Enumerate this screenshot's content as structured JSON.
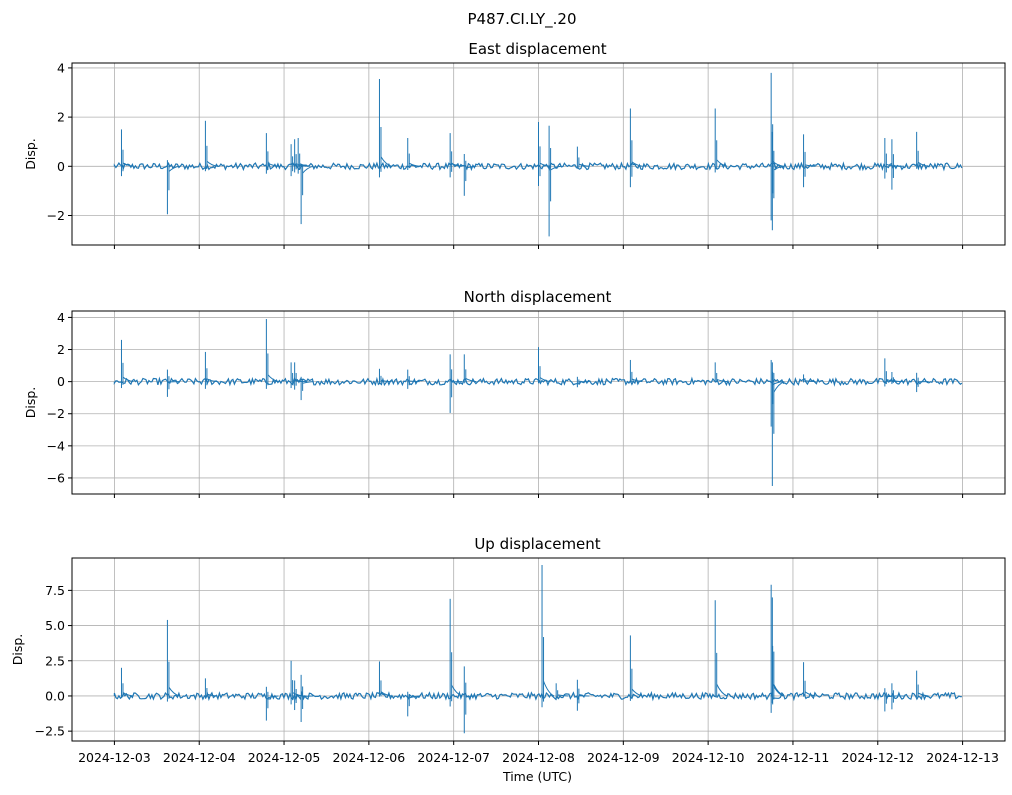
{
  "figure": {
    "title": "P487.CI.LY_.20"
  },
  "colors": {
    "line": "#1f77b4",
    "grid": "#b0b0b0",
    "axes": "#000000"
  },
  "chart_data": [
    {
      "type": "line",
      "title": "East displacement",
      "ylabel": "Disp.",
      "xlabel": "",
      "grid": true,
      "xlim": [
        "2024-12-02T12:00",
        "2024-12-13T12:00"
      ],
      "ylim": [
        -3.2,
        4.2
      ],
      "yticks": [
        4,
        2,
        0,
        -2
      ],
      "ytick_labels": [
        "4",
        "2",
        "0",
        "−2"
      ],
      "xticks": [
        "2024-12-03",
        "2024-12-04",
        "2024-12-05",
        "2024-12-06",
        "2024-12-07",
        "2024-12-08",
        "2024-12-09",
        "2024-12-10",
        "2024-12-11",
        "2024-12-12",
        "2024-12-13"
      ],
      "show_xtick_labels": false,
      "series": [
        {
          "x_range": [
            "2024-12-03T00:00",
            "2024-12-12T23:59"
          ],
          "baseline": 0,
          "spikes": [
            {
              "t": "2024-12-03T02:00",
              "min": -0.4,
              "max": 1.5
            },
            {
              "t": "2024-12-03T15:00",
              "min": -1.95,
              "max": 0.25
            },
            {
              "t": "2024-12-04T01:45",
              "min": -0.2,
              "max": 1.85
            },
            {
              "t": "2024-12-04T19:00",
              "min": -0.3,
              "max": 1.35
            },
            {
              "t": "2024-12-05T02:00",
              "min": -0.4,
              "max": 0.9
            },
            {
              "t": "2024-12-05T03:00",
              "min": -0.25,
              "max": 1.1
            },
            {
              "t": "2024-12-05T04:00",
              "min": -0.3,
              "max": 1.15
            },
            {
              "t": "2024-12-05T04:50",
              "min": -2.35,
              "max": 0.1
            },
            {
              "t": "2024-12-06T03:00",
              "min": -0.45,
              "max": 3.55
            },
            {
              "t": "2024-12-06T11:00",
              "min": -0.15,
              "max": 1.15
            },
            {
              "t": "2024-12-06T23:00",
              "min": -0.45,
              "max": 1.35
            },
            {
              "t": "2024-12-07T03:00",
              "min": -1.2,
              "max": 0.5
            },
            {
              "t": "2024-12-08T00:00",
              "min": -0.8,
              "max": 1.8
            },
            {
              "t": "2024-12-08T03:00",
              "min": -2.85,
              "max": 1.65
            },
            {
              "t": "2024-12-08T11:00",
              "min": -0.1,
              "max": 0.8
            },
            {
              "t": "2024-12-09T02:00",
              "min": -0.85,
              "max": 2.35
            },
            {
              "t": "2024-12-10T02:00",
              "min": -0.25,
              "max": 2.35
            },
            {
              "t": "2024-12-10T17:50",
              "min": -2.2,
              "max": 3.8
            },
            {
              "t": "2024-12-10T18:10",
              "min": -2.6,
              "max": 1.4
            },
            {
              "t": "2024-12-11T03:00",
              "min": -0.85,
              "max": 1.3
            },
            {
              "t": "2024-12-12T02:00",
              "min": -0.5,
              "max": 1.15
            },
            {
              "t": "2024-12-12T04:00",
              "min": -0.95,
              "max": 1.1
            },
            {
              "t": "2024-12-12T11:00",
              "min": -0.1,
              "max": 1.4
            }
          ]
        }
      ]
    },
    {
      "type": "line",
      "title": "North displacement",
      "ylabel": "Disp.",
      "xlabel": "",
      "grid": true,
      "xlim": [
        "2024-12-02T12:00",
        "2024-12-13T12:00"
      ],
      "ylim": [
        -7.0,
        4.4
      ],
      "yticks": [
        4,
        2,
        0,
        -2,
        -4,
        -6
      ],
      "ytick_labels": [
        "4",
        "2",
        "0",
        "−2",
        "−4",
        "−6"
      ],
      "xticks": [
        "2024-12-03",
        "2024-12-04",
        "2024-12-05",
        "2024-12-06",
        "2024-12-07",
        "2024-12-08",
        "2024-12-09",
        "2024-12-10",
        "2024-12-11",
        "2024-12-12",
        "2024-12-13"
      ],
      "show_xtick_labels": false,
      "series": [
        {
          "x_range": [
            "2024-12-03T00:00",
            "2024-12-12T23:59"
          ],
          "baseline": 0,
          "spikes": [
            {
              "t": "2024-12-03T02:00",
              "min": -0.4,
              "max": 2.6
            },
            {
              "t": "2024-12-03T15:00",
              "min": -0.95,
              "max": 0.75
            },
            {
              "t": "2024-12-04T01:45",
              "min": -0.45,
              "max": 1.85
            },
            {
              "t": "2024-12-04T19:00",
              "min": -0.45,
              "max": 3.9
            },
            {
              "t": "2024-12-05T02:00",
              "min": -0.4,
              "max": 1.2
            },
            {
              "t": "2024-12-05T03:00",
              "min": -0.5,
              "max": 1.2
            },
            {
              "t": "2024-12-05T04:50",
              "min": -1.15,
              "max": 0.3
            },
            {
              "t": "2024-12-06T03:00",
              "min": -0.1,
              "max": 0.8
            },
            {
              "t": "2024-12-06T11:00",
              "min": -0.45,
              "max": 0.75
            },
            {
              "t": "2024-12-06T23:00",
              "min": -1.95,
              "max": 1.7
            },
            {
              "t": "2024-12-07T03:00",
              "min": -0.1,
              "max": 1.7
            },
            {
              "t": "2024-12-08T00:00",
              "min": -0.1,
              "max": 2.15
            },
            {
              "t": "2024-12-08T11:00",
              "min": -0.35,
              "max": 0.3
            },
            {
              "t": "2024-12-09T02:00",
              "min": -0.05,
              "max": 1.35
            },
            {
              "t": "2024-12-10T02:00",
              "min": -0.05,
              "max": 1.2
            },
            {
              "t": "2024-12-10T17:50",
              "min": -2.8,
              "max": 1.35
            },
            {
              "t": "2024-12-10T18:10",
              "min": -6.5,
              "max": 1.2
            },
            {
              "t": "2024-12-11T03:00",
              "min": -0.05,
              "max": 0.45
            },
            {
              "t": "2024-12-12T02:00",
              "min": -0.3,
              "max": 1.45
            },
            {
              "t": "2024-12-12T04:00",
              "min": -0.15,
              "max": 0.6
            },
            {
              "t": "2024-12-12T11:00",
              "min": -0.65,
              "max": 0.55
            }
          ]
        }
      ]
    },
    {
      "type": "line",
      "title": "Up displacement",
      "ylabel": "Disp.",
      "xlabel": "Time (UTC)",
      "grid": true,
      "xlim": [
        "2024-12-02T12:00",
        "2024-12-13T12:00"
      ],
      "ylim": [
        -3.2,
        9.8
      ],
      "yticks": [
        7.5,
        5.0,
        2.5,
        0.0,
        -2.5
      ],
      "ytick_labels": [
        "7.5",
        "5.0",
        "2.5",
        "0.0",
        "−2.5"
      ],
      "xticks": [
        "2024-12-03",
        "2024-12-04",
        "2024-12-05",
        "2024-12-06",
        "2024-12-07",
        "2024-12-08",
        "2024-12-09",
        "2024-12-10",
        "2024-12-11",
        "2024-12-12",
        "2024-12-13"
      ],
      "show_xtick_labels": true,
      "series": [
        {
          "x_range": [
            "2024-12-03T00:00",
            "2024-12-12T23:59"
          ],
          "baseline": 0,
          "spikes": [
            {
              "t": "2024-12-03T02:00",
              "min": -0.1,
              "max": 2.0
            },
            {
              "t": "2024-12-03T15:00",
              "min": -0.4,
              "max": 5.4
            },
            {
              "t": "2024-12-04T01:45",
              "min": -0.2,
              "max": 1.25
            },
            {
              "t": "2024-12-04T19:00",
              "min": -1.75,
              "max": 0.65
            },
            {
              "t": "2024-12-05T02:00",
              "min": -0.6,
              "max": 2.5
            },
            {
              "t": "2024-12-05T03:00",
              "min": -1.0,
              "max": 1.1
            },
            {
              "t": "2024-12-05T04:50",
              "min": -1.85,
              "max": 1.5
            },
            {
              "t": "2024-12-06T03:00",
              "min": -0.05,
              "max": 2.45
            },
            {
              "t": "2024-12-06T11:00",
              "min": -1.45,
              "max": 0.3
            },
            {
              "t": "2024-12-06T23:00",
              "min": -0.75,
              "max": 6.9
            },
            {
              "t": "2024-12-07T03:00",
              "min": -2.65,
              "max": 2.1
            },
            {
              "t": "2024-12-08T01:00",
              "min": -0.8,
              "max": 9.3
            },
            {
              "t": "2024-12-08T05:00",
              "min": -0.3,
              "max": 0.9
            },
            {
              "t": "2024-12-08T11:00",
              "min": -1.05,
              "max": 1.15
            },
            {
              "t": "2024-12-09T02:00",
              "min": -0.35,
              "max": 4.3
            },
            {
              "t": "2024-12-10T02:00",
              "min": -0.05,
              "max": 6.8
            },
            {
              "t": "2024-12-10T17:50",
              "min": -1.2,
              "max": 7.9
            },
            {
              "t": "2024-12-10T18:10",
              "min": -0.5,
              "max": 7.0
            },
            {
              "t": "2024-12-11T03:00",
              "min": -0.05,
              "max": 2.4
            },
            {
              "t": "2024-12-12T02:00",
              "min": -1.1,
              "max": 0.55
            },
            {
              "t": "2024-12-12T04:00",
              "min": -0.95,
              "max": 0.9
            },
            {
              "t": "2024-12-12T11:00",
              "min": -0.1,
              "max": 1.8
            }
          ]
        }
      ]
    }
  ]
}
